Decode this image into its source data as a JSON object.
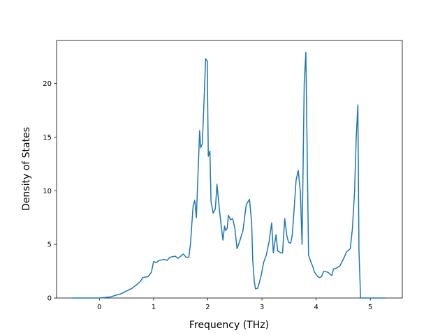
{
  "chart_data": {
    "type": "line",
    "xlabel": "Frequency (THz)",
    "ylabel": "Density of States",
    "color": "#1f77b4",
    "x": [
      -0.5,
      0,
      0.2,
      0.4,
      0.6,
      0.75,
      0.8,
      0.9,
      0.96,
      1.0,
      1.05,
      1.1,
      1.2,
      1.25,
      1.3,
      1.4,
      1.45,
      1.5,
      1.55,
      1.6,
      1.65,
      1.68,
      1.73,
      1.76,
      1.79,
      1.85,
      1.87,
      1.9,
      1.94,
      1.96,
      1.99,
      2.01,
      2.04,
      2.06,
      2.1,
      2.14,
      2.17,
      2.22,
      2.26,
      2.28,
      2.31,
      2.33,
      2.36,
      2.38,
      2.42,
      2.46,
      2.5,
      2.54,
      2.59,
      2.65,
      2.71,
      2.77,
      2.81,
      2.83,
      2.86,
      2.88,
      2.92,
      2.95,
      2.99,
      3.03,
      3.08,
      3.13,
      3.18,
      3.21,
      3.26,
      3.29,
      3.35,
      3.38,
      3.42,
      3.46,
      3.49,
      3.53,
      3.56,
      3.59,
      3.63,
      3.67,
      3.71,
      3.74,
      3.78,
      3.81,
      3.86,
      3.9,
      3.94,
      3.97,
      4.03,
      4.06,
      4.1,
      4.14,
      4.22,
      4.26,
      4.29,
      4.32,
      4.38,
      4.44,
      4.47,
      4.51,
      4.56,
      4.63,
      4.67,
      4.71,
      4.74,
      4.77,
      4.79,
      4.82,
      5.28
    ],
    "values": [
      0,
      0,
      0.1,
      0.4,
      0.9,
      1.5,
      1.9,
      2.0,
      2.4,
      3.4,
      3.3,
      3.5,
      3.6,
      3.5,
      3.8,
      3.9,
      3.7,
      3.9,
      4.1,
      3.8,
      3.8,
      5.0,
      8.6,
      9.1,
      7.5,
      15.6,
      14.0,
      14.4,
      19.5,
      22.3,
      22.1,
      13.2,
      13.7,
      9.0,
      7.9,
      8.3,
      10.6,
      8.0,
      6.2,
      5.4,
      6.7,
      6.3,
      6.5,
      7.7,
      7.3,
      7.4,
      6.5,
      4.6,
      5.3,
      6.3,
      8.7,
      9.2,
      7.0,
      3.5,
      1.5,
      0.85,
      0.9,
      1.4,
      2.2,
      3.3,
      4.0,
      5.2,
      7.0,
      4.2,
      5.9,
      4.4,
      4.2,
      4.2,
      7.4,
      5.8,
      5.2,
      5.1,
      5.9,
      8.0,
      11.0,
      11.9,
      9.8,
      5.0,
      20.0,
      22.9,
      4.0,
      3.4,
      2.9,
      2.4,
      2.0,
      1.9,
      2.0,
      2.5,
      2.4,
      2.2,
      2.1,
      2.7,
      2.8,
      3.0,
      3.3,
      3.7,
      4.3,
      4.6,
      6.5,
      10.0,
      15.0,
      18.0,
      4.5,
      0,
      0
    ],
    "xlim": [
      -0.79,
      5.59
    ],
    "xticks": [
      0,
      1,
      2,
      3,
      4,
      5
    ],
    "ylim": [
      0,
      24.0
    ],
    "yticks": [
      0,
      5,
      10,
      15,
      20
    ]
  }
}
